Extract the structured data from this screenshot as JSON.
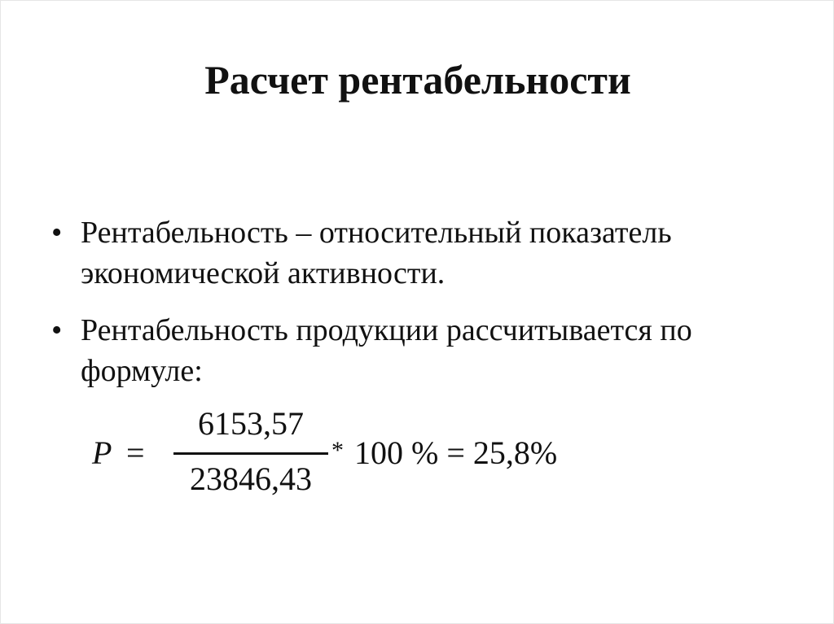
{
  "slide": {
    "title": "Расчет рентабельности",
    "bullets": [
      {
        "symbol": "•",
        "text": "Рентабельность – относительный показатель экономической активности."
      },
      {
        "symbol": "•",
        "text": "Рентабельность продукции рассчитывается по формуле:"
      }
    ],
    "formula": {
      "variable": "P",
      "equals": "=",
      "numerator": "6153,57",
      "denominator": "23846,43",
      "multiply": "*",
      "rest": "100 % = 25,8%"
    }
  }
}
